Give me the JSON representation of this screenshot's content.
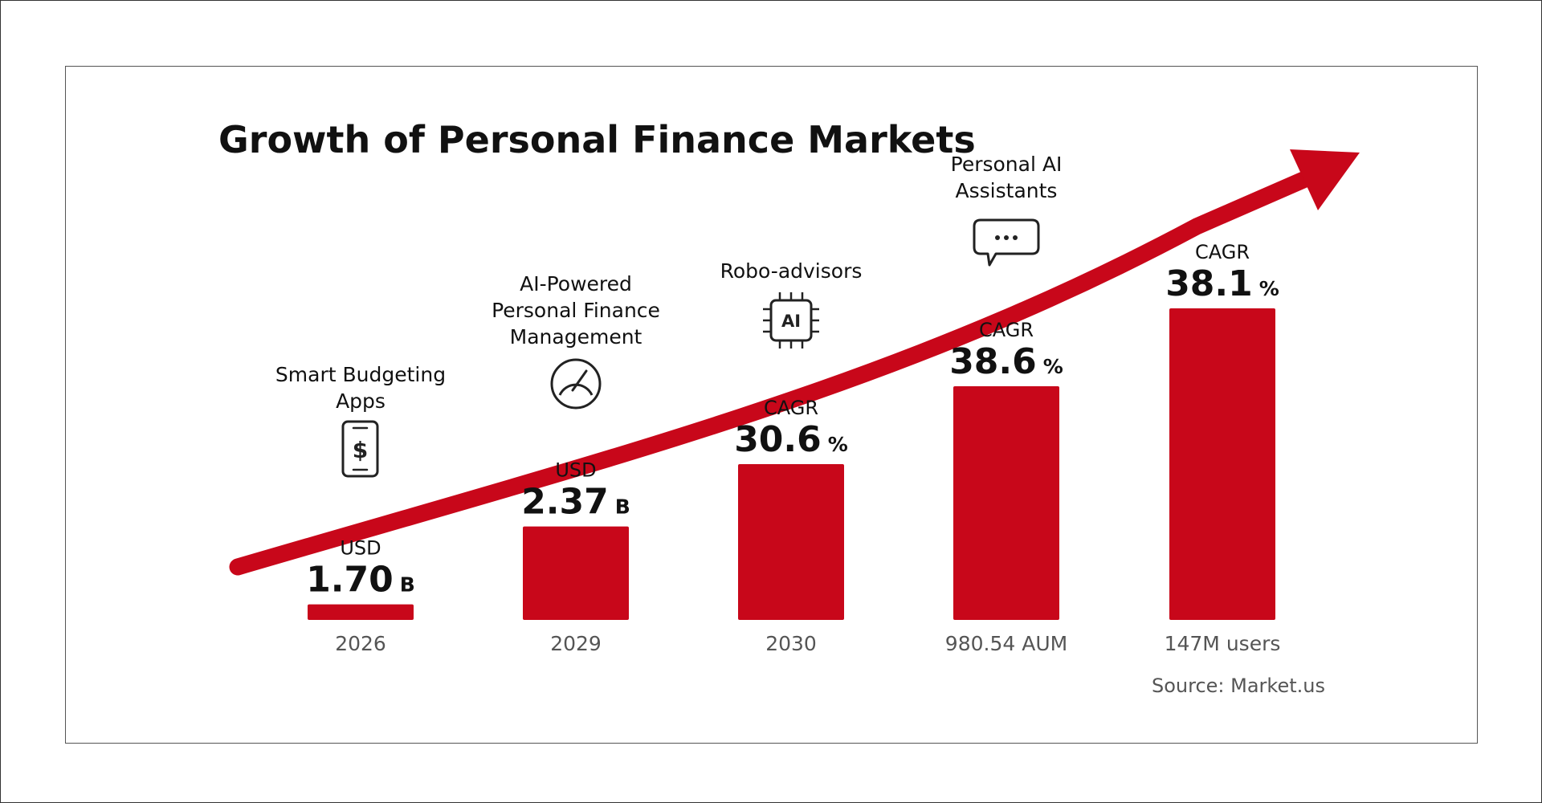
{
  "chart_data": {
    "type": "bar",
    "title": "Growth of Personal Finance Markets",
    "source": "Source: Market.us",
    "accent_color": "#c8071a",
    "categories": [
      "2026",
      "2029",
      "2030",
      "980.54 AUM",
      "147M users"
    ],
    "segments": [
      "Smart Budgeting Apps",
      "AI-Powered Personal Finance Management",
      "Robo-advisors",
      "Personal AI Assistants",
      ""
    ],
    "feature_lines": [
      [
        "Smart Budgeting",
        "Apps"
      ],
      [
        "AI-Powered",
        "Personal Finance",
        "Management"
      ],
      [
        "Robo-advisors"
      ],
      [
        "Personal AI",
        "Assistants"
      ],
      []
    ],
    "icons": [
      "smartphone-dollar-icon",
      "gauge-icon",
      "ai-chip-icon",
      "chat-bubble-icon",
      ""
    ],
    "value_labels": [
      {
        "prefix": "USD",
        "value": "1.70",
        "suffix": "B"
      },
      {
        "prefix": "USD",
        "value": "2.37",
        "suffix": "B"
      },
      {
        "prefix": "CAGR",
        "value": "30.6",
        "suffix": "%"
      },
      {
        "prefix": "CAGR",
        "value": "38.6",
        "suffix": "%"
      },
      {
        "prefix": "CAGR",
        "value": "38.1",
        "suffix": "%"
      }
    ],
    "values": [
      0.2,
      1.2,
      2.0,
      3.0,
      4.0
    ],
    "ylim": [
      0,
      4
    ],
    "grid": false,
    "trend_arrow": true
  }
}
